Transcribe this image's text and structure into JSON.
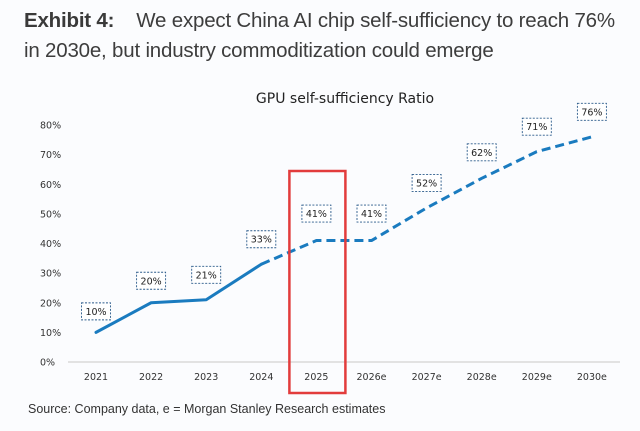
{
  "header": {
    "exhibit": "Exhibit 4:",
    "title": "We expect China AI chip self-sufficiency to reach 76% in 2030e, but industry commoditization could emerge"
  },
  "source": "Source: Company data, e = Morgan Stanley Research estimates",
  "colors": {
    "line": "#1a7bbf",
    "highlight": "#e23c3c",
    "label_border": "#2a5a8a",
    "axis": "#d9d9d9"
  },
  "chart_data": {
    "type": "line",
    "title": "GPU self-sufficiency Ratio",
    "xlabel": "",
    "ylabel": "",
    "categories": [
      "2021",
      "2022",
      "2023",
      "2024",
      "2025",
      "2026e",
      "2027e",
      "2028e",
      "2029e",
      "2030e"
    ],
    "series": [
      {
        "name": "GPU self-sufficiency Ratio",
        "values": [
          10,
          20,
          21,
          33,
          41,
          41,
          52,
          62,
          71,
          76
        ],
        "data_labels": [
          "10%",
          "20%",
          "21%",
          "33%",
          "41%",
          "41%",
          "52%",
          "62%",
          "71%",
          "76%"
        ],
        "solid_until_index": 3,
        "dashed_from_index": 3
      }
    ],
    "ylim": [
      0,
      80
    ],
    "yticks": [
      0,
      10,
      20,
      30,
      40,
      50,
      60,
      70,
      80
    ],
    "ytick_labels": [
      "0%",
      "10%",
      "20%",
      "30%",
      "40%",
      "50%",
      "60%",
      "70%",
      "80%"
    ],
    "grid": false,
    "legend": "none",
    "highlight_category": "2025",
    "highlight_style": "red rectangle"
  }
}
